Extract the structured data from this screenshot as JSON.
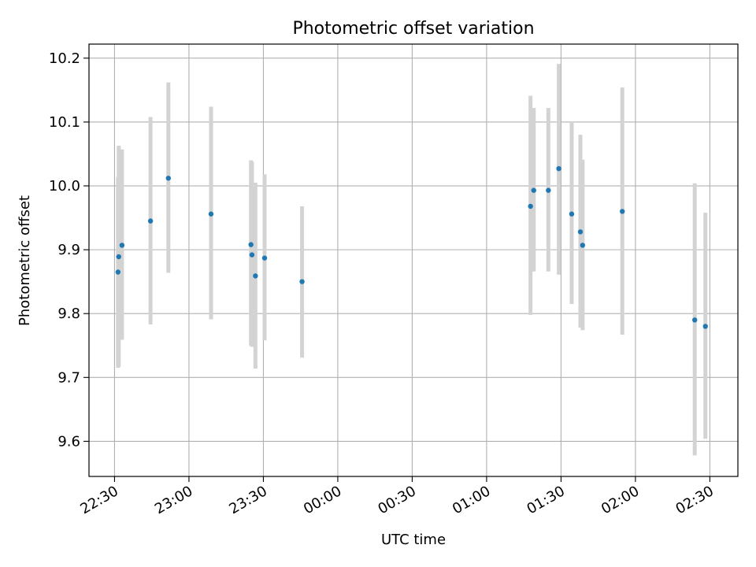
{
  "chart_data": {
    "type": "scatter",
    "title": "Photometric offset variation",
    "xlabel": "UTC time",
    "ylabel": "Photometric offset",
    "grid": true,
    "x_ticks": [
      {
        "t": 0,
        "label": "22:30"
      },
      {
        "t": 30,
        "label": "23:00"
      },
      {
        "t": 60,
        "label": "23:30"
      },
      {
        "t": 90,
        "label": "00:00"
      },
      {
        "t": 120,
        "label": "00:30"
      },
      {
        "t": 150,
        "label": "01:00"
      },
      {
        "t": 180,
        "label": "01:30"
      },
      {
        "t": 210,
        "label": "02:00"
      },
      {
        "t": 240,
        "label": "02:30"
      }
    ],
    "y_ticks": [
      9.6,
      9.7,
      9.8,
      9.9,
      10.0,
      10.1,
      10.2
    ],
    "y_tick_labels": [
      "9.6",
      "9.7",
      "9.8",
      "9.9",
      "10.0",
      "10.1",
      "10.2"
    ],
    "xlim": [
      "22:20",
      "02:41"
    ],
    "ylim": [
      9.545,
      10.222
    ],
    "colors": {
      "point": "#1f77b4",
      "errorbar": "#d3d3d3",
      "grid": "#b0b0b0"
    },
    "points": [
      {
        "t": 1.4,
        "y": 9.865,
        "err_lo": 9.715,
        "err_hi": 10.014
      },
      {
        "t": 1.7,
        "y": 9.889,
        "err_lo": 9.717,
        "err_hi": 10.063
      },
      {
        "t": 3.0,
        "y": 9.907,
        "err_lo": 9.759,
        "err_hi": 10.057
      },
      {
        "t": 14.5,
        "y": 9.945,
        "err_lo": 9.783,
        "err_hi": 10.108
      },
      {
        "t": 21.7,
        "y": 10.012,
        "err_lo": 9.864,
        "err_hi": 10.162
      },
      {
        "t": 38.9,
        "y": 9.956,
        "err_lo": 9.791,
        "err_hi": 10.124
      },
      {
        "t": 55.0,
        "y": 9.908,
        "err_lo": 9.75,
        "err_hi": 10.04
      },
      {
        "t": 55.4,
        "y": 9.892,
        "err_lo": 9.748,
        "err_hi": 10.038
      },
      {
        "t": 56.8,
        "y": 9.859,
        "err_lo": 9.714,
        "err_hi": 10.005
      },
      {
        "t": 60.5,
        "y": 9.887,
        "err_lo": 9.758,
        "err_hi": 10.018
      },
      {
        "t": 75.6,
        "y": 9.85,
        "err_lo": 9.731,
        "err_hi": 9.968
      },
      {
        "t": 167.7,
        "y": 9.968,
        "err_lo": 9.798,
        "err_hi": 10.141
      },
      {
        "t": 169.0,
        "y": 9.993,
        "err_lo": 9.866,
        "err_hi": 10.122
      },
      {
        "t": 174.9,
        "y": 9.993,
        "err_lo": 9.866,
        "err_hi": 10.122
      },
      {
        "t": 179.1,
        "y": 10.027,
        "err_lo": 9.861,
        "err_hi": 10.191
      },
      {
        "t": 184.3,
        "y": 9.956,
        "err_lo": 9.815,
        "err_hi": 10.1
      },
      {
        "t": 187.8,
        "y": 9.928,
        "err_lo": 9.778,
        "err_hi": 10.08
      },
      {
        "t": 188.7,
        "y": 9.907,
        "err_lo": 9.774,
        "err_hi": 10.041
      },
      {
        "t": 204.7,
        "y": 9.96,
        "err_lo": 9.767,
        "err_hi": 10.154
      },
      {
        "t": 233.9,
        "y": 9.79,
        "err_lo": 9.578,
        "err_hi": 10.004
      },
      {
        "t": 238.2,
        "y": 9.78,
        "err_lo": 9.604,
        "err_hi": 9.958
      }
    ]
  }
}
